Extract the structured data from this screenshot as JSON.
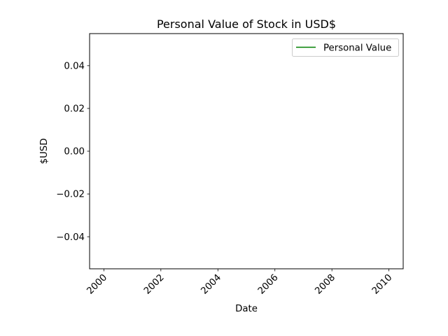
{
  "chart_data": {
    "type": "line",
    "title": "Personal Value of Stock in USD$",
    "xlabel": "Date",
    "ylabel": "$USD",
    "x_ticks": [
      "2000",
      "2002",
      "2004",
      "2006",
      "2008",
      "2010"
    ],
    "x_tick_rotation_deg": 45,
    "xlim": [
      "1999-07",
      "2010-07"
    ],
    "y_ticks": [
      "0.04",
      "0.02",
      "0.00",
      "−0.02",
      "−0.04"
    ],
    "ylim": [
      -0.055,
      0.055
    ],
    "grid": false,
    "legend_position": "upper right",
    "series": [
      {
        "name": "Personal Value",
        "color": "#008000",
        "x": [],
        "values": []
      }
    ]
  }
}
